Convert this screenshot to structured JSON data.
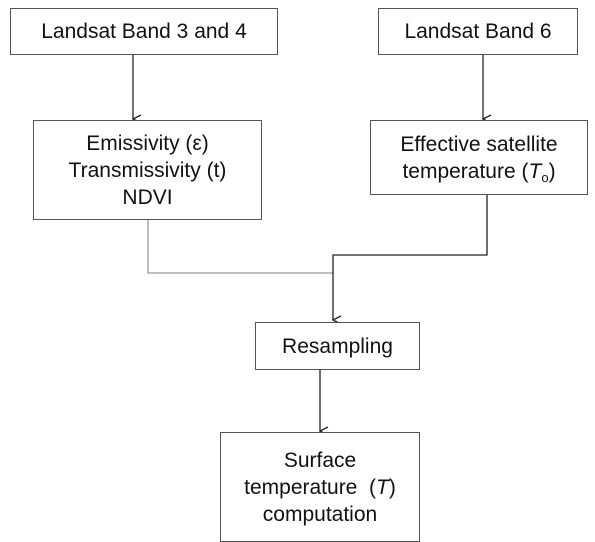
{
  "nodes": [
    {
      "lines": [
        "Landsat Band 3 and 4"
      ]
    },
    {
      "lines": [
        "Landsat Band 6"
      ]
    },
    {
      "lines": [
        "Emissivity (ε)",
        "Transmissivity (t)",
        "NDVI"
      ]
    },
    {
      "lines": [
        "Effective satellite",
        [
          "temperature (",
          "T",
          "o",
          ")"
        ]
      ]
    },
    {
      "lines": [
        "Resampling"
      ]
    },
    {
      "lines": [
        "Surface",
        [
          "temperature  (",
          "T",
          ")"
        ],
        "computation"
      ]
    }
  ]
}
